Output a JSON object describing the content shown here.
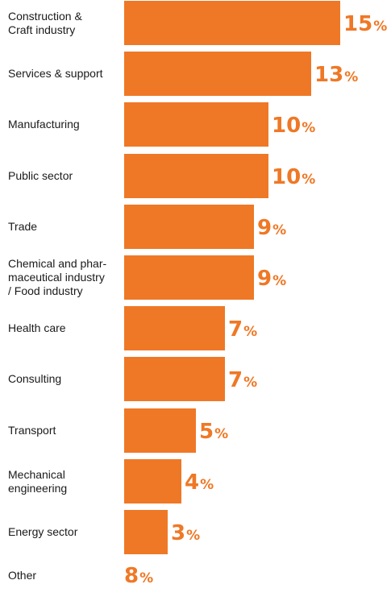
{
  "chart_data": {
    "type": "bar",
    "orientation": "horizontal",
    "unit": "%",
    "bar_color": "#ef7826",
    "label_color": "#ef7826",
    "categories": [
      "Construction & Craft industry",
      "Services & support",
      "Manufacturing",
      "Public sector",
      "Trade",
      "Chemical and phar- maceutical industry / Food industry",
      "Health care",
      "Consulting",
      "Transport",
      "Mechanical engineering",
      "Energy sector",
      "Other"
    ],
    "display_labels": [
      "Construction &\nCraft industry",
      "Services & support",
      "Manufacturing",
      "Public sector",
      "Trade",
      "Chemical and phar-\nmaceutical industry\n/ Food industry",
      "Health care",
      "Consulting",
      "Transport",
      "Mechanical\nengineering",
      "Energy sector",
      "Other"
    ],
    "values": [
      15,
      13,
      10,
      10,
      9,
      9,
      7,
      7,
      5,
      4,
      3,
      8
    ],
    "bar_drawn": [
      true,
      true,
      true,
      true,
      true,
      true,
      true,
      true,
      true,
      true,
      true,
      false
    ]
  }
}
